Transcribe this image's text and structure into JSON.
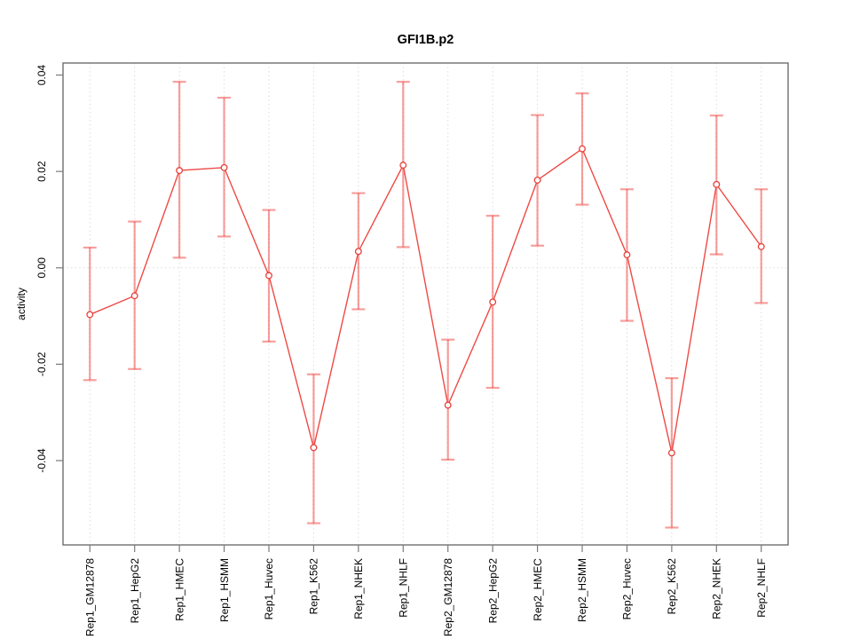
{
  "figure": {
    "background": "#ffffff"
  },
  "chart_data": {
    "type": "line",
    "title": "GFI1B.p2",
    "xlabel": "",
    "ylabel": "activity",
    "legend": "none",
    "grid": {
      "vertical_per_category": true,
      "horizontal_zero_line": true,
      "style": "dotted"
    },
    "ylim": [
      -0.0575,
      0.0425
    ],
    "yticks": [
      {
        "value": 0.04,
        "label": "0.04"
      },
      {
        "value": 0.02,
        "label": "0.02"
      },
      {
        "value": 0.0,
        "label": "0.00"
      },
      {
        "value": -0.02,
        "label": "-0.02"
      },
      {
        "value": -0.04,
        "label": "-0.04"
      }
    ],
    "categories": [
      "Rep1_GM12878",
      "Rep1_HepG2",
      "Rep1_HMEC",
      "Rep1_HSMM",
      "Rep1_Huvec",
      "Rep1_K562",
      "Rep1_NHEK",
      "Rep1_NHLF",
      "Rep2_GM12878",
      "Rep2_HepG2",
      "Rep2_HMEC",
      "Rep2_HSMM",
      "Rep2_Huvec",
      "Rep2_K562",
      "Rep2_NHEK",
      "Rep2_NHLF"
    ],
    "series": [
      {
        "name": "activity",
        "marker": "open-circle",
        "values": [
          -0.0097,
          -0.0058,
          0.0202,
          0.0208,
          -0.0016,
          -0.0373,
          0.0034,
          0.0213,
          -0.0285,
          -0.0071,
          0.0182,
          0.0247,
          0.0027,
          -0.0384,
          0.0173,
          0.0044
        ],
        "error_low": [
          -0.0233,
          -0.021,
          0.0021,
          0.0065,
          -0.0153,
          -0.053,
          -0.0086,
          0.0043,
          -0.0398,
          -0.0249,
          0.0046,
          0.0131,
          -0.011,
          -0.0539,
          0.0028,
          -0.0073
        ],
        "error_high": [
          0.0042,
          0.0096,
          0.0386,
          0.0353,
          0.012,
          -0.0221,
          0.0155,
          0.0386,
          -0.0149,
          0.0108,
          0.0317,
          0.0362,
          0.0163,
          -0.0229,
          0.0316,
          0.0163
        ]
      }
    ],
    "colors": {
      "series_line": "#ee4a45",
      "marker_stroke": "#e8403a",
      "marker_fill": "#ffffff",
      "error_bar": "rgba(240,64,58,0.5)",
      "grid": "#d4d4d4",
      "axis_box": "#6e6e6e",
      "tick": "#7a7a7a",
      "text": "#000000"
    }
  }
}
